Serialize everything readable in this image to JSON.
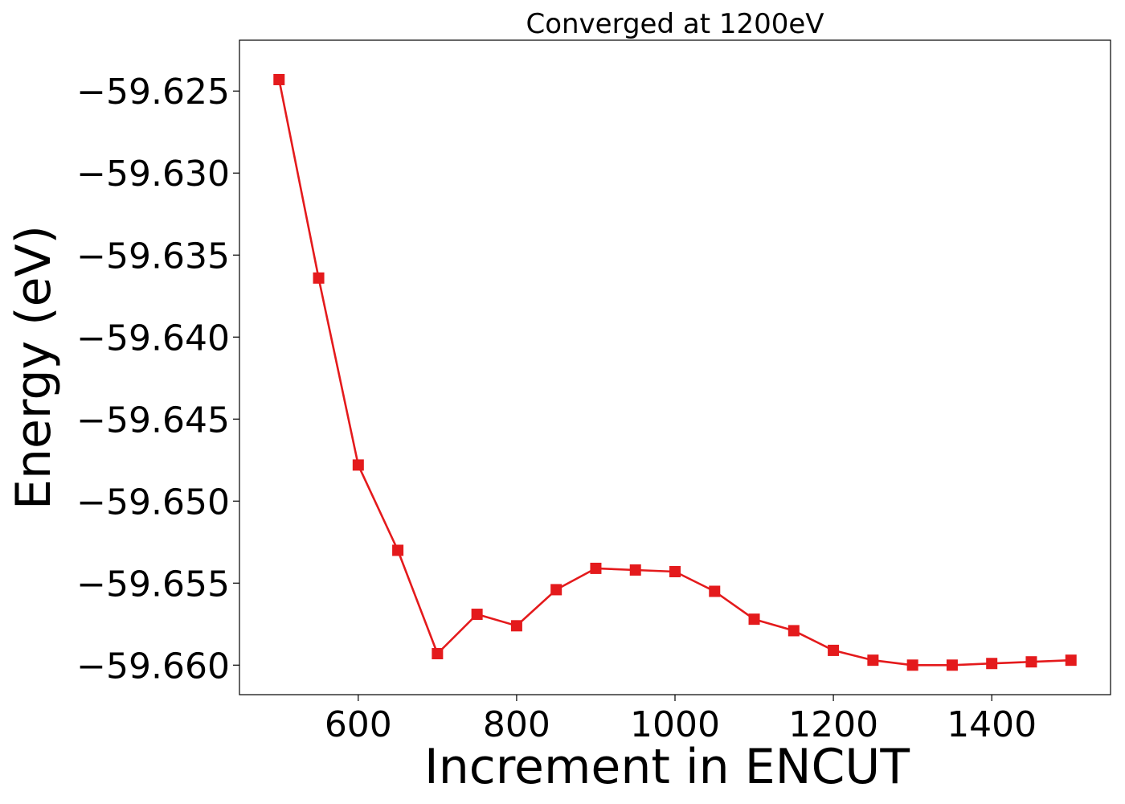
{
  "chart_data": {
    "type": "line",
    "title": "Converged at 1200eV",
    "xlabel": "Increment in ENCUT",
    "ylabel": "Energy (eV)",
    "xlim": [
      450,
      1550
    ],
    "ylim": [
      -59.6618,
      -59.6219
    ],
    "x_ticks": [
      600,
      800,
      1000,
      1200,
      1400
    ],
    "x_tick_labels": [
      "600",
      "800",
      "1000",
      "1200",
      "1400"
    ],
    "y_ticks": [
      -59.625,
      -59.63,
      -59.635,
      -59.64,
      -59.645,
      -59.65,
      -59.655,
      -59.66
    ],
    "y_tick_labels": [
      "−59.625",
      "−59.630",
      "−59.635",
      "−59.640",
      "−59.645",
      "−59.650",
      "−59.655",
      "−59.660"
    ],
    "grid": false,
    "series": [
      {
        "color": "#e41a1c",
        "marker": "square",
        "x": [
          500,
          550,
          600,
          650,
          700,
          750,
          800,
          850,
          900,
          950,
          1000,
          1050,
          1100,
          1150,
          1200,
          1250,
          1300,
          1350,
          1400,
          1450,
          1500
        ],
        "y": [
          -59.6243,
          -59.6364,
          -59.6478,
          -59.653,
          -59.6593,
          -59.6569,
          -59.6576,
          -59.6554,
          -59.6541,
          -59.6542,
          -59.6543,
          -59.6555,
          -59.6572,
          -59.6579,
          -59.6591,
          -59.6597,
          -59.66,
          -59.66,
          -59.6599,
          -59.6598,
          -59.6597
        ]
      }
    ]
  }
}
